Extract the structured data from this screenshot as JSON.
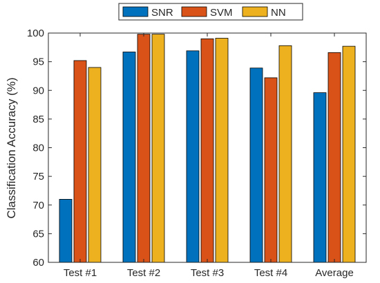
{
  "chart_data": {
    "type": "bar",
    "title": "",
    "xlabel": "",
    "ylabel": "Classification Accuracy (%)",
    "ylim": [
      60,
      100
    ],
    "yticks": [
      60,
      65,
      70,
      75,
      80,
      85,
      90,
      95,
      100
    ],
    "categories": [
      "Test #1",
      "Test #2",
      "Test #3",
      "Test #4",
      "Average"
    ],
    "series": [
      {
        "name": "SNR",
        "color": "#0072BD",
        "values": [
          71.0,
          96.7,
          96.9,
          93.9,
          89.6
        ]
      },
      {
        "name": "SVM",
        "color": "#D95319",
        "values": [
          95.2,
          99.8,
          99.0,
          92.2,
          96.6
        ]
      },
      {
        "name": "NN",
        "color": "#EDB120",
        "values": [
          94.0,
          99.8,
          99.1,
          97.8,
          97.7
        ]
      }
    ],
    "grid": false,
    "legend_position": "top-center"
  }
}
